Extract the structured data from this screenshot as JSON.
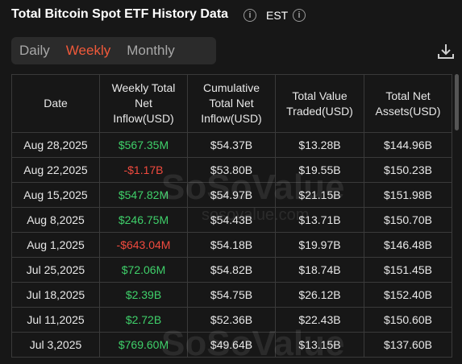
{
  "header": {
    "title": "Total Bitcoin Spot ETF History Data",
    "timezone": "EST"
  },
  "tabs": [
    "Daily",
    "Weekly",
    "Monthly"
  ],
  "active_tab": 1,
  "table": {
    "columns": [
      "Date",
      "Weekly Total Net Inflow(USD)",
      "Cumulative Total Net Inflow(USD)",
      "Total Value Traded(USD)",
      "Total Net Assets(USD)"
    ],
    "rows": [
      [
        "Aug 28,2025",
        "$567.35M",
        "$54.37B",
        "$13.28B",
        "$144.96B"
      ],
      [
        "Aug 22,2025",
        "-$1.17B",
        "$53.80B",
        "$19.55B",
        "$150.23B"
      ],
      [
        "Aug 15,2025",
        "$547.82M",
        "$54.97B",
        "$21.15B",
        "$151.98B"
      ],
      [
        "Aug 8,2025",
        "$246.75M",
        "$54.43B",
        "$13.71B",
        "$150.70B"
      ],
      [
        "Aug 1,2025",
        "-$643.04M",
        "$54.18B",
        "$19.97B",
        "$146.48B"
      ],
      [
        "Jul 25,2025",
        "$72.06M",
        "$54.82B",
        "$18.74B",
        "$151.45B"
      ],
      [
        "Jul 18,2025",
        "$2.39B",
        "$54.75B",
        "$26.12B",
        "$152.40B"
      ],
      [
        "Jul 11,2025",
        "$2.72B",
        "$52.36B",
        "$22.43B",
        "$150.60B"
      ],
      [
        "Jul 3,2025",
        "$769.60M",
        "$49.64B",
        "$13.15B",
        "$137.60B"
      ]
    ]
  },
  "watermark": {
    "brand": "SoSoValue",
    "url": "sosovalue.com"
  }
}
